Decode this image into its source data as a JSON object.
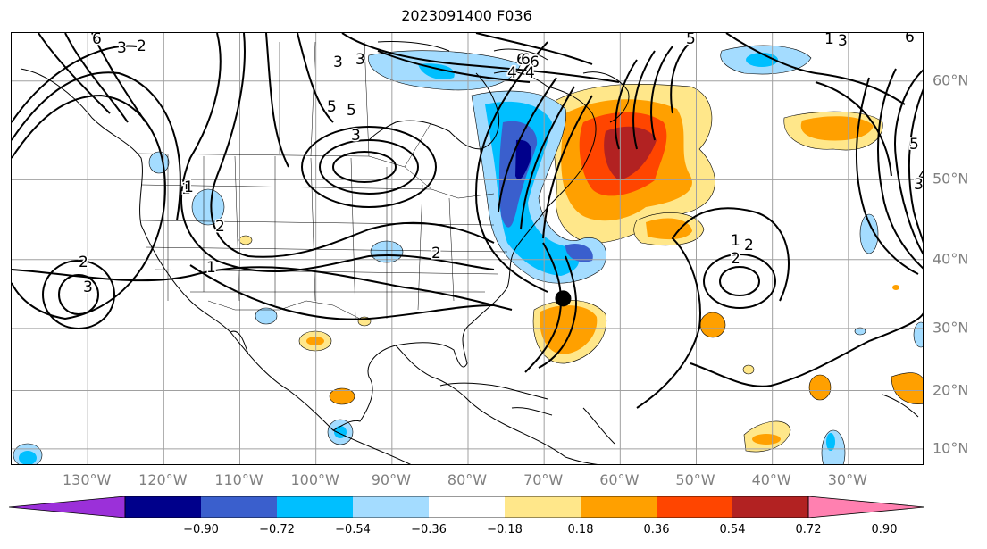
{
  "title": "2023091400 F036",
  "map": {
    "lon_range": [
      -140,
      -20
    ],
    "lat_range": [
      7,
      64
    ],
    "lon_labels": [
      "130°W",
      "120°W",
      "110°W",
      "100°W",
      "90°W",
      "80°W",
      "70°W",
      "60°W",
      "50°W",
      "40°W",
      "30°W"
    ],
    "lat_labels": [
      "60°N",
      "50°N",
      "40°N",
      "30°N",
      "20°N",
      "10°N"
    ],
    "storm_marker": {
      "lon": -67.5,
      "lat": 34.5
    },
    "contour_labels": [
      "6",
      "3",
      "2",
      "5",
      "3",
      "1",
      "6",
      "4",
      "3",
      "2",
      "1",
      "5",
      "6",
      "4",
      "3",
      "2",
      "1",
      "6",
      "5",
      "3",
      "2",
      "1",
      "2",
      "3",
      "1",
      "2",
      "6",
      "5",
      "4",
      "3"
    ]
  },
  "colorbar": {
    "colors": [
      "#9b30d9",
      "#00008b",
      "#3a5fcd",
      "#00bfff",
      "#a4dcff",
      "#ffffff",
      "#ffe78a",
      "#ffa000",
      "#ff4500",
      "#b22222",
      "#ff80b0"
    ],
    "tick_labels": [
      "−0.90",
      "−0.72",
      "−0.54",
      "−0.36",
      "−0.18",
      "0.18",
      "0.36",
      "0.54",
      "0.72",
      "0.90"
    ]
  }
}
